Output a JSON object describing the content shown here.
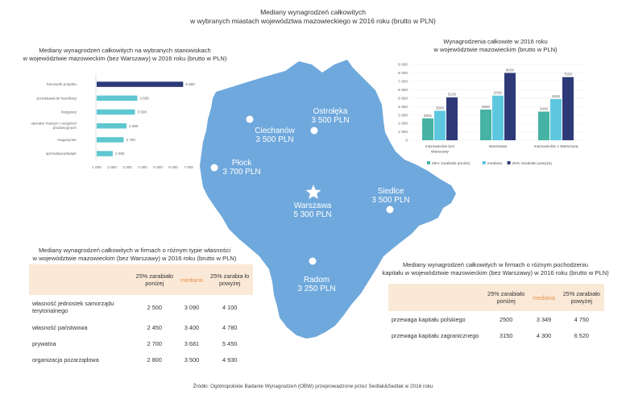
{
  "title": {
    "line1": "Mediany wynagrodzeń całkowitych",
    "line2": "w wybranych miastach województwa mazowieckiego w 2016 roku (brutto w PLN)"
  },
  "map": {
    "cities": [
      {
        "name": "Ostrołęka",
        "value": "3 500 PLN"
      },
      {
        "name": "Ciechanów",
        "value": "3 500 PLN"
      },
      {
        "name": "Płock",
        "value": "3 700 PLN"
      },
      {
        "name": "Siedlce",
        "value": "3 500 PLN"
      },
      {
        "name": "Warszawa",
        "value": "5 300 PLN"
      },
      {
        "name": "Radom",
        "value": "3 250 PLN"
      }
    ]
  },
  "chart_data": [
    {
      "type": "bar",
      "orientation": "horizontal",
      "title": "Mediany wynagrodzeń całkowitych na wybranych stanowiskach w województwie mazowieckim (bez Warszawy) w 2016 roku (brutto w PLN)",
      "title_line1": "Mediany wynagrodzeń całkowitych na wybranych stanowiskach",
      "title_line2": "w województwie mazowieckim (bez Warszawy) w 2016 roku (brutto w PLN)",
      "categories": [
        "kierownik projektu",
        "przedstawiciel handlowy",
        "księgowy",
        "operator maszyn i urządzeń produkcyjnych",
        "magazynier",
        "sprzedawca/kasjer"
      ],
      "values": [
        6650,
        3655,
        3500,
        2950,
        2760,
        2050
      ],
      "value_labels": [
        "6 650",
        "3 655",
        "3 500",
        "2 950",
        "2 760",
        "2 050"
      ],
      "x_ticks": [
        "1 000",
        "2 000",
        "3 000",
        "4 000",
        "5 000",
        "6 000",
        "7 000"
      ],
      "xlim": [
        1000,
        7000
      ],
      "colors": [
        "#2e3a78",
        "#5ec7cf",
        "#5ec7cf",
        "#5ec7cf",
        "#5ec7cf",
        "#5ec7cf"
      ]
    },
    {
      "type": "bar",
      "title": "Wynagrodzenia całkowite w 2016 roku w województwie mazowieckim (brutto w PLN)",
      "title_line1": "Wynagrodzenia całkowite w  2016  roku",
      "title_line2": "w województwie mazowieckim (brutto w PLN)",
      "categories": [
        "mazowieckie bez Warszawy",
        "Warszawa",
        "mazowieckie z Warszawą"
      ],
      "category_lines": [
        [
          "mazowieckie bez",
          "Warszawy"
        ],
        [
          "Warszawa"
        ],
        [
          "mazowieckie z Warszawą"
        ]
      ],
      "series": [
        {
          "name": "25% zarabiało poniżej",
          "values": [
            2601,
            3650,
            3400
          ],
          "color": "#46b3a4"
        },
        {
          "name": "mediana",
          "values": [
            3500,
            5300,
            4900
          ],
          "color": "#5ec7e0"
        },
        {
          "name": "25% zarabiało powyżej",
          "values": [
            5100,
            8000,
            7500
          ],
          "color": "#2e3a78"
        }
      ],
      "y_ticks": [
        "0",
        "1 000",
        "2 000",
        "3 000",
        "4 000",
        "5 000",
        "6 000",
        "7 000",
        "8 000",
        "9 000"
      ],
      "ylim": [
        0,
        9000
      ]
    },
    {
      "type": "table",
      "title_line1": "Mediany wynagrodzeń całkowitych w   firmach o różnym typie własności",
      "title_line2": "w województwie mazowieckim (bez Warszawy) w 2016 roku (brutto w PLN)",
      "headers": [
        "",
        "25% zarabiało poniżej",
        "mediana",
        "25% zarabia ło powyżej"
      ],
      "header_lines": [
        [
          ""
        ],
        [
          "25% zarabiało",
          "poniżej"
        ],
        [
          "mediana"
        ],
        [
          "25% zarabia  ło",
          "powyżej"
        ]
      ],
      "rows": [
        {
          "label": "własność jednostek samorządu terytorialnego",
          "label_lines": [
            "własność jednostek samorządu",
            "terytorialnego"
          ],
          "values": [
            "2 500",
            "3 090",
            "4 100"
          ]
        },
        {
          "label": "własność państwowa",
          "label_lines": [
            "własność państwowa"
          ],
          "values": [
            "2 450",
            "3 400",
            "4 780"
          ]
        },
        {
          "label": "prywatna",
          "label_lines": [
            "prywatna"
          ],
          "values": [
            "2 700",
            "3 681",
            "5 450"
          ]
        },
        {
          "label": "organizacja pozarządowa",
          "label_lines": [
            "organizacja pozarządowa"
          ],
          "values": [
            "2 800",
            "3 500",
            "4 930"
          ]
        }
      ]
    },
    {
      "type": "table",
      "title_line1": "Mediany wynagrodzeń całkowitych w  firmach o różnym pochodzeniu",
      "title_line2": "kapitału w województwie mazowieckim (bez Warszawy) w 2016 roku (brutto w PLN)",
      "header_lines": [
        [
          ""
        ],
        [
          "25% zarabiało",
          "poniżej"
        ],
        [
          "mediana"
        ],
        [
          "25% zarabiało",
          "powyżej"
        ]
      ],
      "rows": [
        {
          "label": "przewaga kapitału polskiego",
          "values": [
            "2500",
            "3 349",
            "4 750"
          ]
        },
        {
          "label": "przewaga kapitału zagranicznego",
          "values": [
            "3150",
            "4 300",
            "6 520"
          ]
        }
      ]
    }
  ],
  "source": "Źródło: Ogólnopolskie Badanie Wynagrodzeń (OBW) przeprowadzone przez Sedlak&Sedlak w 2016    roku"
}
